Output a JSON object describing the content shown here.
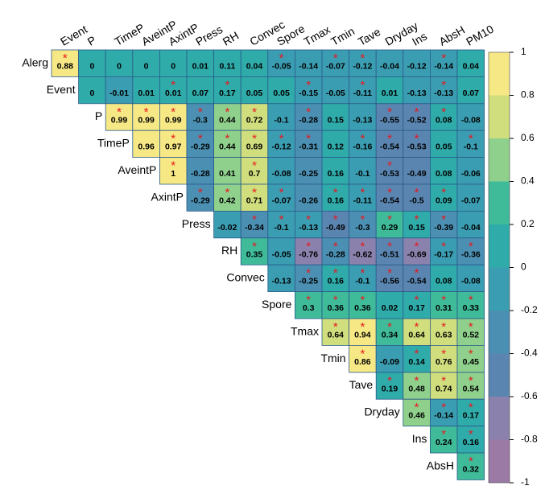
{
  "chart_data": {
    "type": "heatmap",
    "x": [
      "Event",
      "P",
      "TimeP",
      "AveintP",
      "AxintP",
      "Press",
      "RH",
      "Convec",
      "Spore",
      "Tmax",
      "Tmin",
      "Tave",
      "Dryday",
      "Ins",
      "AbsH",
      "PM10"
    ],
    "y": [
      "Alerg",
      "Event",
      "P",
      "TimeP",
      "AveintP",
      "AxintP",
      "Press",
      "RH",
      "Convec",
      "Spore",
      "Tmax",
      "Tmin",
      "Tave",
      "Dryday",
      "Ins",
      "AbsH"
    ],
    "values": [
      [
        0.88,
        0,
        0,
        0,
        0,
        0.01,
        0.11,
        0.04,
        -0.05,
        -0.14,
        -0.07,
        -0.12,
        -0.04,
        -0.12,
        -0.14,
        0.04
      ],
      [
        null,
        0,
        -0.01,
        0.01,
        0.01,
        0.07,
        0.17,
        0.05,
        0.05,
        -0.15,
        -0.05,
        -0.11,
        0.01,
        -0.13,
        -0.13,
        0.07
      ],
      [
        null,
        null,
        0.99,
        0.99,
        0.99,
        -0.3,
        0.44,
        0.72,
        -0.1,
        -0.28,
        0.15,
        -0.13,
        -0.55,
        -0.52,
        0.08,
        -0.08
      ],
      [
        null,
        null,
        null,
        0.96,
        0.97,
        -0.29,
        0.44,
        0.69,
        -0.12,
        -0.31,
        0.12,
        -0.16,
        -0.54,
        -0.53,
        0.05,
        -0.1
      ],
      [
        null,
        null,
        null,
        null,
        1,
        -0.28,
        0.41,
        0.7,
        -0.08,
        -0.25,
        0.16,
        -0.1,
        -0.53,
        -0.49,
        0.08,
        -0.06
      ],
      [
        null,
        null,
        null,
        null,
        null,
        -0.29,
        0.42,
        0.71,
        -0.07,
        -0.26,
        0.16,
        -0.11,
        -0.54,
        -0.5,
        0.09,
        -0.07
      ],
      [
        null,
        null,
        null,
        null,
        null,
        null,
        -0.02,
        -0.34,
        -0.1,
        -0.13,
        -0.49,
        -0.3,
        0.29,
        0.15,
        -0.39,
        -0.04
      ],
      [
        null,
        null,
        null,
        null,
        null,
        null,
        null,
        0.35,
        -0.05,
        -0.76,
        -0.28,
        -0.62,
        -0.51,
        -0.69,
        -0.17,
        -0.36
      ],
      [
        null,
        null,
        null,
        null,
        null,
        null,
        null,
        null,
        -0.13,
        -0.25,
        0.16,
        -0.1,
        -0.56,
        -0.54,
        0.08,
        -0.08
      ],
      [
        null,
        null,
        null,
        null,
        null,
        null,
        null,
        null,
        null,
        0.3,
        0.36,
        0.36,
        0.02,
        0.17,
        0.31,
        0.33
      ],
      [
        null,
        null,
        null,
        null,
        null,
        null,
        null,
        null,
        null,
        null,
        0.64,
        0.94,
        0.34,
        0.64,
        0.63,
        0.52
      ],
      [
        null,
        null,
        null,
        null,
        null,
        null,
        null,
        null,
        null,
        null,
        null,
        0.86,
        -0.09,
        0.14,
        0.76,
        0.45
      ],
      [
        null,
        null,
        null,
        null,
        null,
        null,
        null,
        null,
        null,
        null,
        null,
        null,
        0.19,
        0.48,
        0.74,
        0.54
      ],
      [
        null,
        null,
        null,
        null,
        null,
        null,
        null,
        null,
        null,
        null,
        null,
        null,
        null,
        0.46,
        -0.14,
        0.17
      ],
      [
        null,
        null,
        null,
        null,
        null,
        null,
        null,
        null,
        null,
        null,
        null,
        null,
        null,
        null,
        0.24,
        0.16
      ],
      [
        null,
        null,
        null,
        null,
        null,
        null,
        null,
        null,
        null,
        null,
        null,
        null,
        null,
        null,
        null,
        0.32
      ]
    ],
    "sig_mark": "*",
    "significant": [
      [
        true,
        false,
        false,
        false,
        false,
        false,
        false,
        false,
        true,
        false,
        true,
        true,
        false,
        false,
        true,
        false
      ],
      [
        null,
        false,
        false,
        false,
        true,
        false,
        true,
        false,
        false,
        true,
        false,
        true,
        false,
        false,
        true,
        false
      ],
      [
        null,
        null,
        true,
        true,
        true,
        true,
        true,
        true,
        false,
        true,
        false,
        false,
        true,
        true,
        true,
        false
      ],
      [
        null,
        null,
        null,
        false,
        true,
        true,
        true,
        true,
        true,
        true,
        false,
        true,
        true,
        true,
        false,
        true
      ],
      [
        null,
        null,
        null,
        null,
        true,
        false,
        false,
        true,
        false,
        false,
        false,
        false,
        true,
        false,
        false,
        false
      ],
      [
        null,
        null,
        null,
        null,
        null,
        true,
        true,
        true,
        true,
        false,
        true,
        true,
        true,
        true,
        true,
        false
      ],
      [
        null,
        null,
        null,
        null,
        null,
        null,
        false,
        true,
        true,
        true,
        true,
        true,
        true,
        true,
        true,
        false
      ],
      [
        null,
        null,
        null,
        null,
        null,
        null,
        null,
        true,
        false,
        true,
        true,
        true,
        true,
        true,
        true,
        true
      ],
      [
        null,
        null,
        null,
        null,
        null,
        null,
        null,
        null,
        false,
        true,
        true,
        true,
        true,
        true,
        false,
        false
      ],
      [
        null,
        null,
        null,
        null,
        null,
        null,
        null,
        null,
        null,
        true,
        true,
        true,
        false,
        true,
        true,
        true
      ],
      [
        null,
        null,
        null,
        null,
        null,
        null,
        null,
        null,
        null,
        null,
        true,
        true,
        true,
        true,
        true,
        true
      ],
      [
        null,
        null,
        null,
        null,
        null,
        null,
        null,
        null,
        null,
        null,
        null,
        true,
        false,
        true,
        true,
        true
      ],
      [
        null,
        null,
        null,
        null,
        null,
        null,
        null,
        null,
        null,
        null,
        null,
        null,
        true,
        true,
        true,
        true
      ],
      [
        null,
        null,
        null,
        null,
        null,
        null,
        null,
        null,
        null,
        null,
        null,
        null,
        null,
        true,
        true,
        true
      ],
      [
        null,
        null,
        null,
        null,
        null,
        null,
        null,
        null,
        null,
        null,
        null,
        null,
        null,
        null,
        true,
        true
      ],
      [
        null,
        null,
        null,
        null,
        null,
        null,
        null,
        null,
        null,
        null,
        null,
        null,
        null,
        null,
        null,
        true
      ]
    ],
    "zlim": [
      -1,
      1
    ],
    "zticks": [
      1,
      0.8,
      0.6,
      0.4,
      0.2,
      0,
      -0.2,
      -0.4,
      -0.6,
      -0.8,
      -1
    ],
    "colors": [
      "#9b7aa6",
      "#8a82ad",
      "#5a85b0",
      "#4b90b3",
      "#3b9db2",
      "#2fabaa",
      "#3fbb9a",
      "#8fd08c",
      "#d0de7e",
      "#f7e886"
    ]
  }
}
